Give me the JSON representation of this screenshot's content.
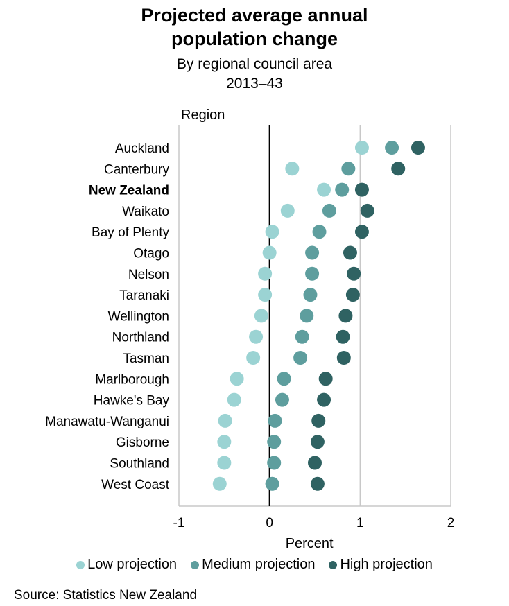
{
  "chart_data": {
    "type": "scatter",
    "title_lines": [
      "Projected average annual",
      "population change"
    ],
    "subtitle_lines": [
      "By regional council area",
      "2013–43"
    ],
    "ylabel": "Region",
    "xlabel": "Percent",
    "xlim": [
      -1,
      2
    ],
    "xticks": [
      "-1",
      "0",
      "1",
      "2"
    ],
    "grid": "vertical",
    "legend_position": "bottom",
    "highlighted_category": "New Zealand",
    "categories": [
      "Auckland",
      "Canterbury",
      "New Zealand",
      "Waikato",
      "Bay of Plenty",
      "Otago",
      "Nelson",
      "Taranaki",
      "Wellington",
      "Northland",
      "Tasman",
      "Marlborough",
      "Hawke's Bay",
      "Manawatu-Wanganui",
      "Gisborne",
      "Southland",
      "West Coast"
    ],
    "series": [
      {
        "name": "Low projection",
        "color": "#9bd3d3",
        "values": [
          1.02,
          0.25,
          0.6,
          0.2,
          0.03,
          0.0,
          -0.05,
          -0.05,
          -0.09,
          -0.15,
          -0.18,
          -0.36,
          -0.39,
          -0.49,
          -0.5,
          -0.5,
          -0.55
        ]
      },
      {
        "name": "Medium projection",
        "color": "#5e9e9e",
        "values": [
          1.35,
          0.87,
          0.8,
          0.66,
          0.55,
          0.47,
          0.47,
          0.45,
          0.41,
          0.36,
          0.34,
          0.16,
          0.14,
          0.06,
          0.05,
          0.05,
          0.03
        ]
      },
      {
        "name": "High projection",
        "color": "#2f6262",
        "values": [
          1.64,
          1.42,
          1.02,
          1.08,
          1.02,
          0.89,
          0.93,
          0.92,
          0.84,
          0.81,
          0.82,
          0.62,
          0.6,
          0.54,
          0.53,
          0.5,
          0.53
        ]
      }
    ],
    "source": "Source: Statistics New Zealand"
  }
}
